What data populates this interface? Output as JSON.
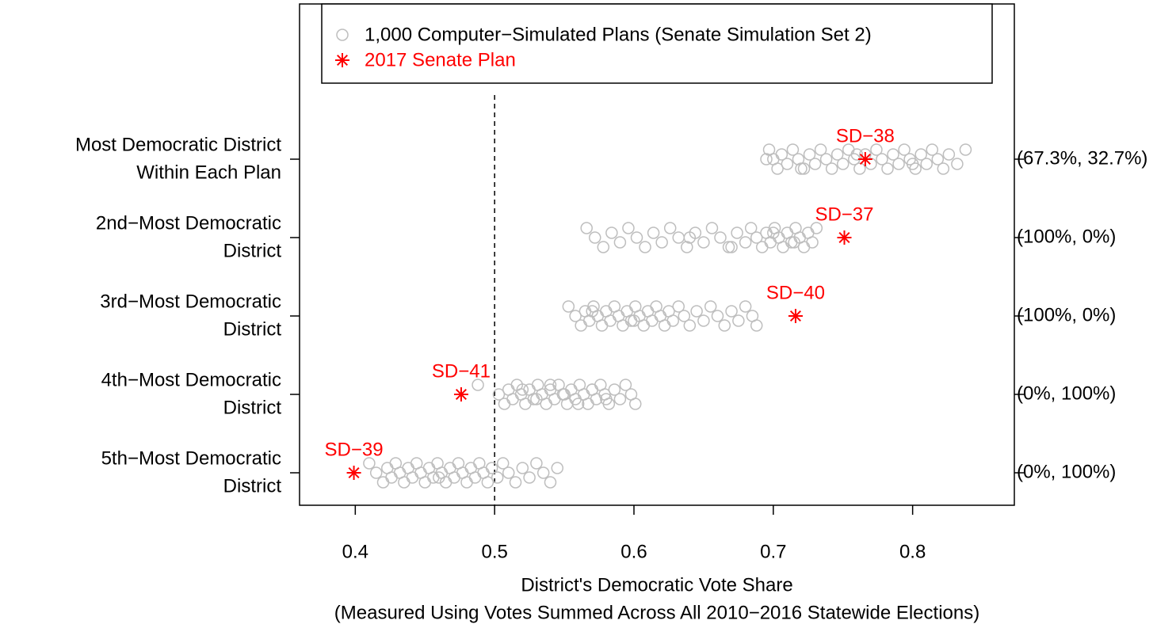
{
  "chart_data": {
    "type": "scatter",
    "categories": [
      [
        "Most Democratic District",
        "Within Each Plan"
      ],
      [
        "2nd−Most Democratic",
        "District"
      ],
      [
        "3rd−Most Democratic",
        "District"
      ],
      [
        "4th−Most Democratic",
        "District"
      ],
      [
        "5th−Most Democratic",
        "District"
      ]
    ],
    "right_labels": [
      "(67.3%, 32.7%)",
      "(100%, 0%)",
      "(100%, 0%)",
      "(0%, 100%)",
      "(0%, 100%)"
    ],
    "xlabel": [
      "District's Democratic Vote Share",
      "(Measured Using Votes Summed Across All 2010−2016 Statewide Elections)"
    ],
    "xlim": [
      0.36,
      0.873
    ],
    "xticks": [
      0.4,
      0.5,
      0.6,
      0.7,
      0.8
    ],
    "reference_line": 0.5,
    "series": [
      {
        "name": "1,000 Computer−Simulated Plans (Senate Simulation Set 2)",
        "color": "#bebebe",
        "values": [
          [
            0.697,
            0.7,
            0.703,
            0.706,
            0.71,
            0.714,
            0.718,
            0.722,
            0.726,
            0.73,
            0.734,
            0.738,
            0.742,
            0.746,
            0.75,
            0.754,
            0.758,
            0.762,
            0.766,
            0.77,
            0.774,
            0.778,
            0.782,
            0.786,
            0.79,
            0.794,
            0.798,
            0.802,
            0.806,
            0.81,
            0.814,
            0.818,
            0.822,
            0.826,
            0.832,
            0.838,
            0.695,
            0.72,
            0.76,
            0.8
          ],
          [
            0.566,
            0.572,
            0.578,
            0.584,
            0.59,
            0.596,
            0.602,
            0.608,
            0.614,
            0.62,
            0.626,
            0.632,
            0.638,
            0.644,
            0.65,
            0.656,
            0.662,
            0.668,
            0.674,
            0.68,
            0.684,
            0.688,
            0.692,
            0.695,
            0.698,
            0.701,
            0.704,
            0.707,
            0.71,
            0.713,
            0.716,
            0.719,
            0.722,
            0.725,
            0.728,
            0.731,
            0.64,
            0.67,
            0.7,
            0.715
          ],
          [
            0.553,
            0.558,
            0.562,
            0.565,
            0.568,
            0.571,
            0.574,
            0.577,
            0.58,
            0.583,
            0.586,
            0.589,
            0.592,
            0.595,
            0.598,
            0.601,
            0.604,
            0.607,
            0.61,
            0.613,
            0.616,
            0.619,
            0.622,
            0.625,
            0.628,
            0.632,
            0.636,
            0.64,
            0.645,
            0.65,
            0.655,
            0.66,
            0.665,
            0.67,
            0.675,
            0.68,
            0.685,
            0.688,
            0.57,
            0.6
          ],
          [
            0.488,
            0.503,
            0.507,
            0.51,
            0.513,
            0.516,
            0.519,
            0.522,
            0.525,
            0.528,
            0.531,
            0.534,
            0.537,
            0.54,
            0.543,
            0.546,
            0.549,
            0.552,
            0.555,
            0.558,
            0.561,
            0.564,
            0.567,
            0.57,
            0.573,
            0.576,
            0.579,
            0.582,
            0.586,
            0.59,
            0.594,
            0.598,
            0.601,
            0.52,
            0.53,
            0.54,
            0.55,
            0.56,
            0.57,
            0.58
          ],
          [
            0.41,
            0.415,
            0.42,
            0.423,
            0.426,
            0.429,
            0.432,
            0.435,
            0.438,
            0.441,
            0.444,
            0.447,
            0.45,
            0.453,
            0.456,
            0.459,
            0.462,
            0.465,
            0.468,
            0.471,
            0.474,
            0.477,
            0.48,
            0.483,
            0.486,
            0.489,
            0.492,
            0.495,
            0.498,
            0.502,
            0.506,
            0.51,
            0.515,
            0.52,
            0.525,
            0.53,
            0.535,
            0.54,
            0.545,
            0.46
          ]
        ]
      },
      {
        "name": "2017 Senate Plan",
        "color": "#ff0000",
        "values": [
          0.766,
          0.751,
          0.716,
          0.476,
          0.399
        ],
        "labels": [
          "SD−38",
          "SD−37",
          "SD−40",
          "SD−41",
          "SD−39"
        ]
      }
    ]
  }
}
